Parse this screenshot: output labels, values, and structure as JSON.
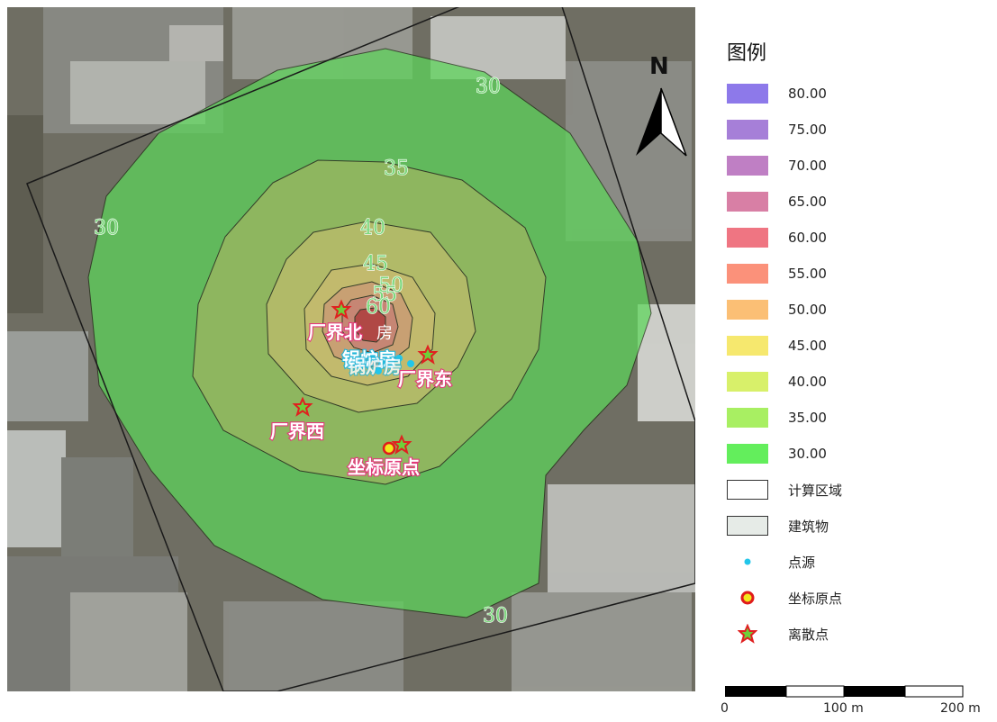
{
  "legend": {
    "title": "图例",
    "classes": [
      {
        "label": "80.00",
        "color": "#8d79ea"
      },
      {
        "label": "75.00",
        "color": "#a67fd8"
      },
      {
        "label": "70.00",
        "color": "#bf7fc4"
      },
      {
        "label": "65.00",
        "color": "#d87fa5"
      },
      {
        "label": "60.00",
        "color": "#ef7582"
      },
      {
        "label": "55.00",
        "color": "#fb917a"
      },
      {
        "label": "50.00",
        "color": "#fbbf75"
      },
      {
        "label": "45.00",
        "color": "#f6e86e"
      },
      {
        "label": "40.00",
        "color": "#d8f06a"
      },
      {
        "label": "35.00",
        "color": "#a8ef62"
      },
      {
        "label": "30.00",
        "color": "#63ee5c"
      }
    ],
    "calc_area": "计算区域",
    "building": "建筑物",
    "point_source": "点源",
    "origin": "坐标原点",
    "discrete_point": "离散点"
  },
  "map": {
    "north_label": "N",
    "contour_labels": [
      "30",
      "30",
      "30",
      "35",
      "40",
      "45",
      "50",
      "55",
      "60"
    ],
    "places": {
      "north": "厂界北",
      "east": "厂界东",
      "west": "厂界西",
      "origin": "坐标原点",
      "boiler_room": "锅炉房",
      "room_char": "房"
    }
  },
  "scale": {
    "ticks": [
      "0",
      "100 m",
      "200 m"
    ]
  }
}
